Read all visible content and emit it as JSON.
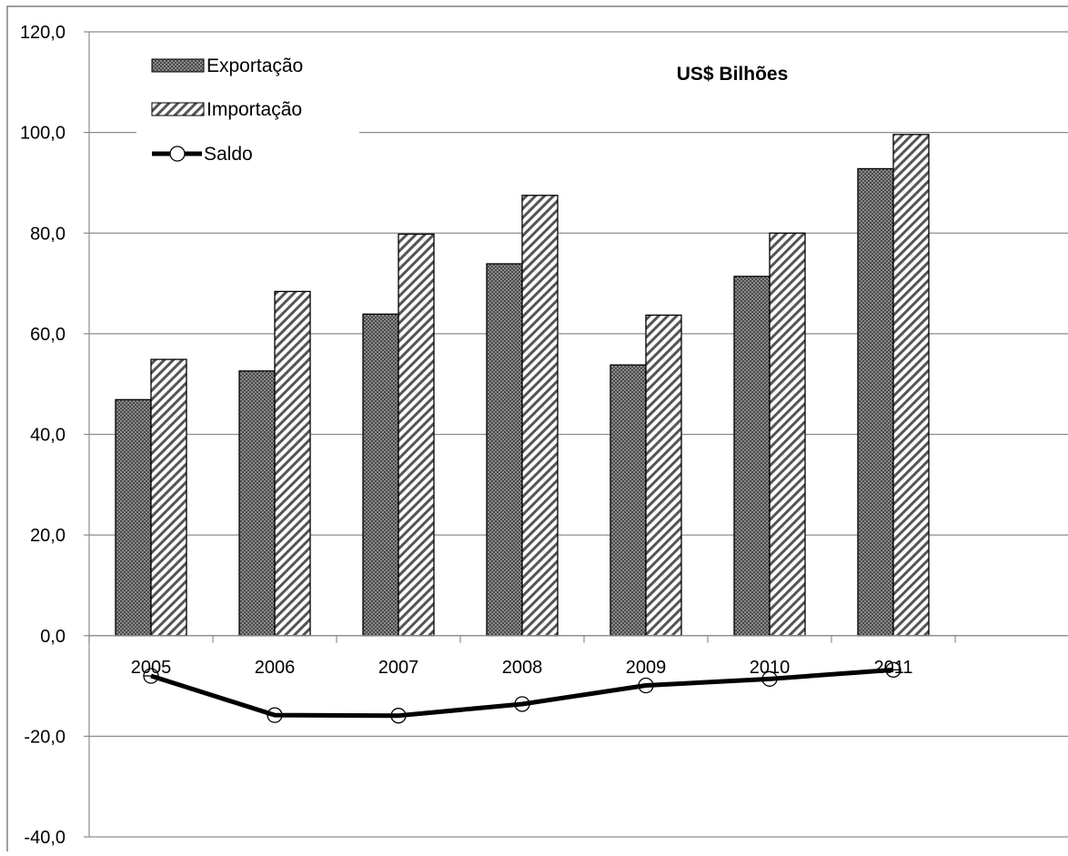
{
  "chart_data": {
    "type": "bar",
    "title": "US$ Bilhões",
    "categories": [
      "2005",
      "2006",
      "2007",
      "2008",
      "2009",
      "2010",
      "2011"
    ],
    "series": [
      {
        "name": "Exportação",
        "type": "bar",
        "pattern": "dotted",
        "values": [
          46.9,
          52.6,
          63.9,
          73.9,
          53.8,
          71.4,
          92.8
        ]
      },
      {
        "name": "Importação",
        "type": "bar",
        "pattern": "hatched",
        "values": [
          54.9,
          68.4,
          79.8,
          87.5,
          63.7,
          80.0,
          99.6
        ]
      },
      {
        "name": "Saldo",
        "type": "line",
        "marker": "circle",
        "values": [
          -8.0,
          -15.8,
          -15.9,
          -13.6,
          -9.9,
          -8.6,
          -6.8
        ]
      }
    ],
    "y_ticks": [
      "120,0",
      "100,0",
      "80,0",
      "60,0",
      "40,0",
      "20,0",
      "0,0",
      "-20,0",
      "-40,0"
    ],
    "ylim": [
      -40,
      120
    ],
    "grid": true,
    "legend_position": "top-left",
    "colors": {
      "bar_dark": "#6e6e6e",
      "bar_light": "#ffffff",
      "hatch": "#555555",
      "line": "#000000",
      "grid": "#8c8c8c",
      "border": "#808080"
    }
  }
}
